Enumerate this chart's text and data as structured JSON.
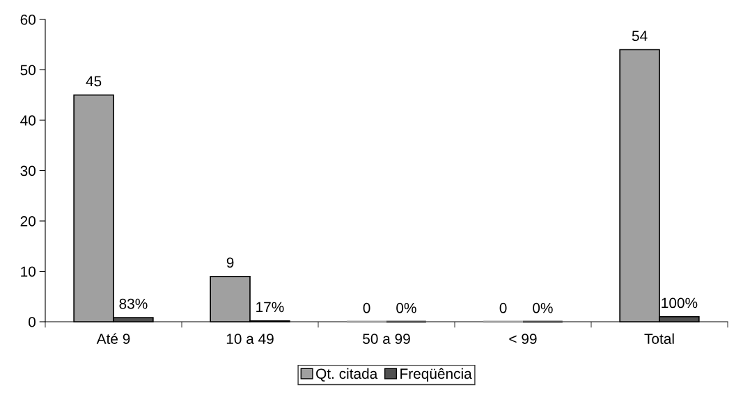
{
  "chart_data": {
    "type": "bar",
    "categories": [
      "Até 9",
      "10 a 49",
      "50 a 99",
      "< 99",
      "Total"
    ],
    "series": [
      {
        "name": "Qt. citada",
        "color": "#a0a0a0",
        "values": [
          45,
          9,
          0,
          0,
          54
        ],
        "value_labels": [
          "45",
          "9",
          "0",
          "0",
          "54"
        ]
      },
      {
        "name": "Freqüência",
        "color": "#505050",
        "values": [
          0.83,
          0.17,
          0,
          0,
          1
        ],
        "value_labels": [
          "83%",
          "17%",
          "0%",
          "0%",
          "100%"
        ]
      }
    ],
    "ylim": [
      0,
      60
    ],
    "yticks": [
      0,
      10,
      20,
      30,
      40,
      50,
      60
    ],
    "grid": false,
    "legend": "bottom"
  }
}
